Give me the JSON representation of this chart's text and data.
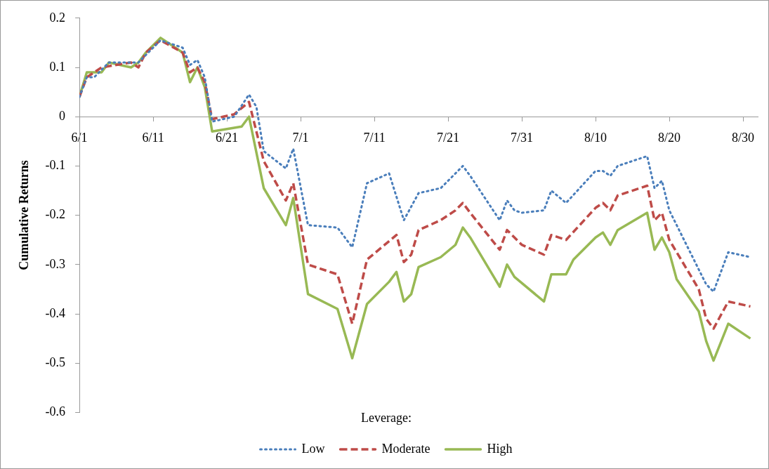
{
  "chart_data": {
    "type": "line",
    "ylabel": "Cumulative Returns",
    "legend_title": "Leverage:",
    "legend": "bottom",
    "grid": false,
    "marker": "none",
    "xlim": [
      "--06-01",
      "--09-01"
    ],
    "xticks": [
      {
        "value": "--06-01",
        "label": "6/1"
      },
      {
        "value": "--06-11",
        "label": "6/11"
      },
      {
        "value": "--06-21",
        "label": "6/21"
      },
      {
        "value": "--07-01",
        "label": "7/1"
      },
      {
        "value": "--07-11",
        "label": "7/11"
      },
      {
        "value": "--07-21",
        "label": "7/21"
      },
      {
        "value": "--07-31",
        "label": "7/31"
      },
      {
        "value": "--08-10",
        "label": "8/10"
      },
      {
        "value": "--08-20",
        "label": "8/20"
      },
      {
        "value": "--08-30",
        "label": "8/30"
      }
    ],
    "ylim": [
      -0.6,
      0.2
    ],
    "yticks": [
      -0.6,
      -0.5,
      -0.4,
      -0.3,
      -0.2,
      -0.1,
      0,
      0.1,
      0.2
    ],
    "series": [
      {
        "name": "Low",
        "color": "#4a7ebb",
        "line_style": "dotted",
        "x": [
          "--06-01",
          "--06-02",
          "--06-03",
          "--06-05",
          "--06-09",
          "--06-12",
          "--06-15",
          "--06-16",
          "--06-17",
          "--06-18",
          "--06-19",
          "--06-22",
          "--06-24",
          "--06-25",
          "--06-26",
          "--06-29",
          "--06-30",
          "--07-02",
          "--07-06",
          "--07-08",
          "--07-10",
          "--07-13",
          "--07-15",
          "--07-17",
          "--07-20",
          "--07-23",
          "--07-24",
          "--07-28",
          "--07-29",
          "--07-30",
          "--07-31",
          "--08-03",
          "--08-04",
          "--08-06",
          "--08-10",
          "--08-11",
          "--08-12",
          "--08-13",
          "--08-17",
          "--08-18",
          "--08-19",
          "--08-20",
          "--08-25",
          "--08-26",
          "--08-28",
          "--08-31"
        ],
        "values": [
          0.04,
          0.08,
          0.08,
          0.11,
          0.11,
          0.155,
          0.14,
          0.105,
          0.115,
          0.08,
          -0.01,
          0.0,
          0.045,
          0.02,
          -0.07,
          -0.105,
          -0.065,
          -0.22,
          -0.225,
          -0.265,
          -0.135,
          -0.115,
          -0.21,
          -0.155,
          -0.145,
          -0.1,
          -0.12,
          -0.21,
          -0.17,
          -0.19,
          -0.195,
          -0.19,
          -0.15,
          -0.175,
          -0.11,
          -0.11,
          -0.12,
          -0.1,
          -0.08,
          -0.145,
          -0.13,
          -0.19,
          -0.34,
          -0.355,
          -0.275,
          -0.285
        ]
      },
      {
        "name": "Moderate",
        "color": "#be4b48",
        "line_style": "dashed",
        "x": [
          "--06-01",
          "--06-02",
          "--06-04",
          "--06-08",
          "--06-09",
          "--06-10",
          "--06-12",
          "--06-15",
          "--06-16",
          "--06-17",
          "--06-18",
          "--06-19",
          "--06-22",
          "--06-24",
          "--06-26",
          "--06-29",
          "--06-30",
          "--07-02",
          "--07-06",
          "--07-08",
          "--07-10",
          "--07-14",
          "--07-15",
          "--07-16",
          "--07-17",
          "--07-20",
          "--07-22",
          "--07-23",
          "--07-24",
          "--07-28",
          "--07-29",
          "--07-31",
          "--08-03",
          "--08-04",
          "--08-06",
          "--08-10",
          "--08-11",
          "--08-12",
          "--08-13",
          "--08-17",
          "--08-18",
          "--08-19",
          "--08-20",
          "--08-24",
          "--08-25",
          "--08-26",
          "--08-28",
          "--08-31"
        ],
        "values": [
          0.04,
          0.08,
          0.1,
          0.11,
          0.1,
          0.13,
          0.155,
          0.13,
          0.09,
          0.1,
          0.07,
          -0.005,
          0.005,
          0.03,
          -0.09,
          -0.17,
          -0.135,
          -0.3,
          -0.32,
          -0.42,
          -0.29,
          -0.24,
          -0.295,
          -0.28,
          -0.23,
          -0.21,
          -0.19,
          -0.175,
          -0.195,
          -0.27,
          -0.23,
          -0.26,
          -0.28,
          -0.24,
          -0.25,
          -0.185,
          -0.175,
          -0.19,
          -0.16,
          -0.14,
          -0.21,
          -0.195,
          -0.25,
          -0.35,
          -0.41,
          -0.43,
          -0.375,
          -0.385
        ]
      },
      {
        "name": "High",
        "color": "#98b954",
        "line_style": "solid",
        "x": [
          "--06-01",
          "--06-02",
          "--06-03",
          "--06-04",
          "--06-05",
          "--06-08",
          "--06-09",
          "--06-10",
          "--06-12",
          "--06-15",
          "--06-16",
          "--06-17",
          "--06-18",
          "--06-19",
          "--06-23",
          "--06-24",
          "--06-26",
          "--06-29",
          "--06-30",
          "--07-02",
          "--07-06",
          "--07-08",
          "--07-10",
          "--07-13",
          "--07-14",
          "--07-15",
          "--07-16",
          "--07-17",
          "--07-20",
          "--07-22",
          "--07-23",
          "--07-24",
          "--07-28",
          "--07-29",
          "--07-30",
          "--08-03",
          "--08-04",
          "--08-06",
          "--08-07",
          "--08-10",
          "--08-11",
          "--08-12",
          "--08-13",
          "--08-17",
          "--08-18",
          "--08-19",
          "--08-20",
          "--08-21",
          "--08-24",
          "--08-25",
          "--08-26",
          "--08-28",
          "--08-31"
        ],
        "values": [
          0.04,
          0.09,
          0.09,
          0.09,
          0.11,
          0.1,
          0.11,
          0.13,
          0.16,
          0.13,
          0.07,
          0.1,
          0.06,
          -0.03,
          -0.02,
          0.0,
          -0.145,
          -0.22,
          -0.165,
          -0.36,
          -0.39,
          -0.49,
          -0.38,
          -0.335,
          -0.315,
          -0.375,
          -0.36,
          -0.305,
          -0.285,
          -0.26,
          -0.225,
          -0.245,
          -0.345,
          -0.3,
          -0.325,
          -0.375,
          -0.32,
          -0.32,
          -0.29,
          -0.245,
          -0.235,
          -0.26,
          -0.23,
          -0.195,
          -0.27,
          -0.245,
          -0.275,
          -0.33,
          -0.395,
          -0.455,
          -0.495,
          -0.42,
          -0.45
        ]
      }
    ]
  }
}
